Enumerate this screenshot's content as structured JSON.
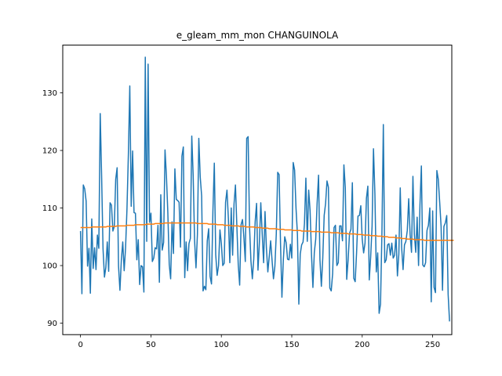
{
  "chart_data": {
    "type": "line",
    "title": "e_gleam_mm_mon CHANGUINOLA",
    "xlabel": "",
    "ylabel": "",
    "xlim": [
      -12.6,
      263.6
    ],
    "ylim": [
      88.0,
      138.3
    ],
    "xticks": [
      0,
      50,
      100,
      150,
      200,
      250
    ],
    "yticks": [
      90,
      100,
      110,
      120,
      130
    ],
    "grid": false,
    "legend": "none",
    "colors": {
      "series1": "#1f77b4",
      "series2": "#ff7f0e"
    },
    "series": [
      {
        "values": [
          106.0,
          95.1,
          114.0,
          113.3,
          111.2,
          99.9,
          103.0,
          95.2,
          108.1,
          99.5,
          103.1,
          99.3,
          105.3,
          103.0,
          126.4,
          115.5,
          102.9,
          98.0,
          99.7,
          104.1,
          99.0,
          110.9,
          110.5,
          106.0,
          106.8,
          115.0,
          117.0,
          99.9,
          95.7,
          101.0,
          104.1,
          99.1,
          103.1,
          109.9,
          119.4,
          131.2,
          110.3,
          119.9,
          109.2,
          109.1,
          101.0,
          104.5,
          96.7,
          100.0,
          99.8,
          95.4,
          136.2,
          104.2,
          135.0,
          107.5,
          109.1,
          100.7,
          101.3,
          103.1,
          102.9,
          107.0,
          97.1,
          112.3,
          102.7,
          104.0,
          120.1,
          115.6,
          109.2,
          100.2,
          97.7,
          107.6,
          102.1,
          116.8,
          111.5,
          111.3,
          111.0,
          103.2,
          119.0,
          120.6,
          97.9,
          104.1,
          99.1,
          103.8,
          104.7,
          122.5,
          115.6,
          104.3,
          99.6,
          105.4,
          122.1,
          115.4,
          112.1,
          95.6,
          96.4,
          95.8,
          104.3,
          106.4,
          98.1,
          96.8,
          109.4,
          117.8,
          101.9,
          98.3,
          100.0,
          106.2,
          103.8,
          100.0,
          100.4,
          111.0,
          113.1,
          108.1,
          100.5,
          110.0,
          101.8,
          110.7,
          114.0,
          106.9,
          100.1,
          96.6,
          107.1,
          108.0,
          104.9,
          100.7,
          122.1,
          122.4,
          106.8,
          100.8,
          97.7,
          101.1,
          107.6,
          110.8,
          99.2,
          104.0,
          110.9,
          105.5,
          100.5,
          109.4,
          103.0,
          98.9,
          101.6,
          104.3,
          100.9,
          97.7,
          99.9,
          105.5,
          116.2,
          115.8,
          103.9,
          94.5,
          101.0,
          105.0,
          104.0,
          101.1,
          101.0,
          103.7,
          101.3,
          117.9,
          116.6,
          110.0,
          105.5,
          93.3,
          102.0,
          103.6,
          104.1,
          107.3,
          115.2,
          104.2,
          113.1,
          109.5,
          101.9,
          96.2,
          102.3,
          104.6,
          110.9,
          115.7,
          101.0,
          96.4,
          101.3,
          108.7,
          110.8,
          114.7,
          113.6,
          96.1,
          95.6,
          98.6,
          106.6,
          107.0,
          100.0,
          100.5,
          106.9,
          106.9,
          104.3,
          117.5,
          113.5,
          97.6,
          101.0,
          105.6,
          106.3,
          114.4,
          97.8,
          97.2,
          102.2,
          108.6,
          108.7,
          110.4,
          104.6,
          102.2,
          103.9,
          111.7,
          113.8,
          97.5,
          101.5,
          106.8,
          120.3,
          112.5,
          98.9,
          102.2,
          91.7,
          93.3,
          105.8,
          124.5,
          100.5,
          101.0,
          103.6,
          103.8,
          101.8,
          103.9,
          101.3,
          101.8,
          105.3,
          98.2,
          102.0,
          113.5,
          103.1,
          99.3,
          103.6,
          104.2,
          106.1,
          111.6,
          105.4,
          102.3,
          115.5,
          105.5,
          102.3,
          108.4,
          100.0,
          110.5,
          117.3,
          100.1,
          99.8,
          100.5,
          106.1,
          107.0,
          110.0,
          93.7,
          109.5,
          96.2,
          95.3,
          116.5,
          115.0,
          111.0,
          106.8,
          95.7,
          106.8,
          107.4,
          108.7,
          95.0,
          90.3
        ]
      },
      {
        "values": [
          106.6,
          106.6,
          106.6,
          106.6,
          106.6,
          106.6,
          106.6,
          106.6,
          106.7,
          106.7,
          106.7,
          106.7,
          106.7,
          106.7,
          106.7,
          106.7,
          106.7,
          106.7,
          106.7,
          106.8,
          106.8,
          106.8,
          106.8,
          106.8,
          106.8,
          106.8,
          106.9,
          106.9,
          106.9,
          106.9,
          106.9,
          106.9,
          106.9,
          107.0,
          107.0,
          107.0,
          107.0,
          107.0,
          107.0,
          107.1,
          107.1,
          107.1,
          107.1,
          107.1,
          107.1,
          107.1,
          107.1,
          107.2,
          107.2,
          107.2,
          107.2,
          107.2,
          107.2,
          107.3,
          107.3,
          107.3,
          107.3,
          107.3,
          107.3,
          107.3,
          107.4,
          107.4,
          107.4,
          107.4,
          107.4,
          107.4,
          107.4,
          107.4,
          107.4,
          107.4,
          107.4,
          107.4,
          107.4,
          107.4,
          107.4,
          107.4,
          107.4,
          107.4,
          107.4,
          107.4,
          107.4,
          107.4,
          107.4,
          107.3,
          107.3,
          107.3,
          107.3,
          107.3,
          107.3,
          107.3,
          107.3,
          107.2,
          107.2,
          107.2,
          107.2,
          107.2,
          107.2,
          107.1,
          107.1,
          107.1,
          107.1,
          107.1,
          107.0,
          107.0,
          107.0,
          107.0,
          107.0,
          106.9,
          106.9,
          106.9,
          106.9,
          106.9,
          106.9,
          106.8,
          106.8,
          106.8,
          106.8,
          106.8,
          106.7,
          106.7,
          106.7,
          106.7,
          106.7,
          106.7,
          106.6,
          106.6,
          106.6,
          106.6,
          106.6,
          106.5,
          106.5,
          106.5,
          106.5,
          106.5,
          106.4,
          106.4,
          106.4,
          106.4,
          106.4,
          106.4,
          106.3,
          106.3,
          106.3,
          106.3,
          106.3,
          106.2,
          106.2,
          106.2,
          106.2,
          106.2,
          106.2,
          106.1,
          106.1,
          106.1,
          106.1,
          106.1,
          106.1,
          106.0,
          106.0,
          106.0,
          106.0,
          106.0,
          106.0,
          106.0,
          105.9,
          105.9,
          105.9,
          105.9,
          105.9,
          105.9,
          105.9,
          105.8,
          105.8,
          105.8,
          105.8,
          105.8,
          105.8,
          105.8,
          105.7,
          105.7,
          105.7,
          105.7,
          105.7,
          105.7,
          105.6,
          105.6,
          105.6,
          105.6,
          105.6,
          105.6,
          105.5,
          105.5,
          105.5,
          105.5,
          105.5,
          105.5,
          105.4,
          105.4,
          105.4,
          105.4,
          105.4,
          105.3,
          105.3,
          105.3,
          105.3,
          105.3,
          105.2,
          105.2,
          105.2,
          105.2,
          105.2,
          105.1,
          105.1,
          105.1,
          105.1,
          105.0,
          105.0,
          105.0,
          105.0,
          104.9,
          104.9,
          104.9,
          104.9,
          104.9,
          104.8,
          104.8,
          104.8,
          104.8,
          104.7,
          104.7,
          104.7,
          104.7,
          104.6,
          104.6,
          104.6,
          104.6,
          104.6,
          104.5,
          104.5,
          104.5,
          104.5,
          104.5,
          104.5,
          104.5,
          104.4,
          104.4,
          104.4,
          104.4,
          104.4,
          104.4,
          104.4,
          104.4,
          104.4,
          104.4,
          104.4,
          104.4,
          104.4,
          104.4,
          104.4,
          104.4,
          104.4,
          104.4,
          104.4,
          104.4,
          104.4,
          104.4
        ]
      }
    ]
  }
}
